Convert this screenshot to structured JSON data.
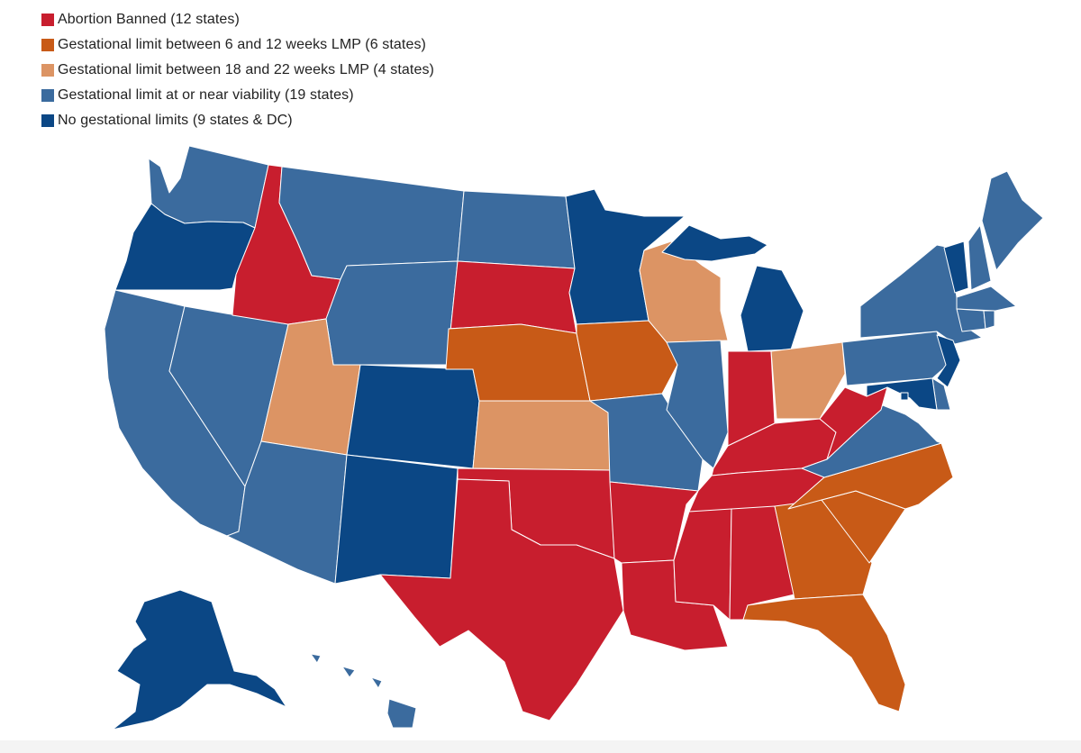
{
  "legend": {
    "items": [
      {
        "key": "banned",
        "label": "Abortion Banned (12 states)",
        "color": "#c81e2e"
      },
      {
        "key": "6-12",
        "label": "Gestational limit between 6 and 12 weeks LMP (6 states)",
        "color": "#c85a17"
      },
      {
        "key": "18-22",
        "label": "Gestational limit between 18 and 22 weeks LMP (4 states)",
        "color": "#dc9464"
      },
      {
        "key": "viability",
        "label": "Gestational limit at or near viability (19 states)",
        "color": "#3b6b9e"
      },
      {
        "key": "none",
        "label": "No gestational limits (9 states & DC)",
        "color": "#0b4785"
      }
    ]
  },
  "map": {
    "states": [
      {
        "name": "washington",
        "status": "viability"
      },
      {
        "name": "oregon",
        "status": "none"
      },
      {
        "name": "california",
        "status": "viability"
      },
      {
        "name": "nevada",
        "status": "viability"
      },
      {
        "name": "idaho",
        "status": "banned"
      },
      {
        "name": "montana",
        "status": "viability"
      },
      {
        "name": "wyoming",
        "status": "viability"
      },
      {
        "name": "utah",
        "status": "18-22"
      },
      {
        "name": "arizona",
        "status": "viability"
      },
      {
        "name": "colorado",
        "status": "none"
      },
      {
        "name": "new-mexico",
        "status": "none"
      },
      {
        "name": "north-dakota",
        "status": "viability"
      },
      {
        "name": "south-dakota",
        "status": "banned"
      },
      {
        "name": "nebraska",
        "status": "6-12"
      },
      {
        "name": "kansas",
        "status": "18-22"
      },
      {
        "name": "oklahoma",
        "status": "banned"
      },
      {
        "name": "texas",
        "status": "banned"
      },
      {
        "name": "minnesota",
        "status": "none"
      },
      {
        "name": "iowa",
        "status": "6-12"
      },
      {
        "name": "missouri",
        "status": "viability"
      },
      {
        "name": "arkansas",
        "status": "banned"
      },
      {
        "name": "louisiana",
        "status": "banned"
      },
      {
        "name": "wisconsin",
        "status": "18-22"
      },
      {
        "name": "illinois",
        "status": "viability"
      },
      {
        "name": "michigan",
        "status": "none"
      },
      {
        "name": "indiana",
        "status": "banned"
      },
      {
        "name": "ohio",
        "status": "18-22"
      },
      {
        "name": "kentucky",
        "status": "banned"
      },
      {
        "name": "tennessee",
        "status": "banned"
      },
      {
        "name": "mississippi",
        "status": "banned"
      },
      {
        "name": "alabama",
        "status": "banned"
      },
      {
        "name": "georgia",
        "status": "6-12"
      },
      {
        "name": "florida",
        "status": "6-12"
      },
      {
        "name": "south-carolina",
        "status": "6-12"
      },
      {
        "name": "north-carolina",
        "status": "6-12"
      },
      {
        "name": "virginia",
        "status": "viability"
      },
      {
        "name": "west-virginia",
        "status": "banned"
      },
      {
        "name": "pennsylvania",
        "status": "viability"
      },
      {
        "name": "new-york",
        "status": "viability"
      },
      {
        "name": "vermont",
        "status": "none"
      },
      {
        "name": "new-hampshire",
        "status": "viability"
      },
      {
        "name": "maine",
        "status": "viability"
      },
      {
        "name": "massachusetts",
        "status": "viability"
      },
      {
        "name": "connecticut",
        "status": "viability"
      },
      {
        "name": "rhode-island",
        "status": "viability"
      },
      {
        "name": "new-jersey",
        "status": "none"
      },
      {
        "name": "delaware",
        "status": "viability"
      },
      {
        "name": "maryland",
        "status": "none"
      },
      {
        "name": "district-of-columbia",
        "status": "none"
      },
      {
        "name": "alaska",
        "status": "none"
      },
      {
        "name": "hawaii",
        "status": "viability"
      }
    ]
  }
}
